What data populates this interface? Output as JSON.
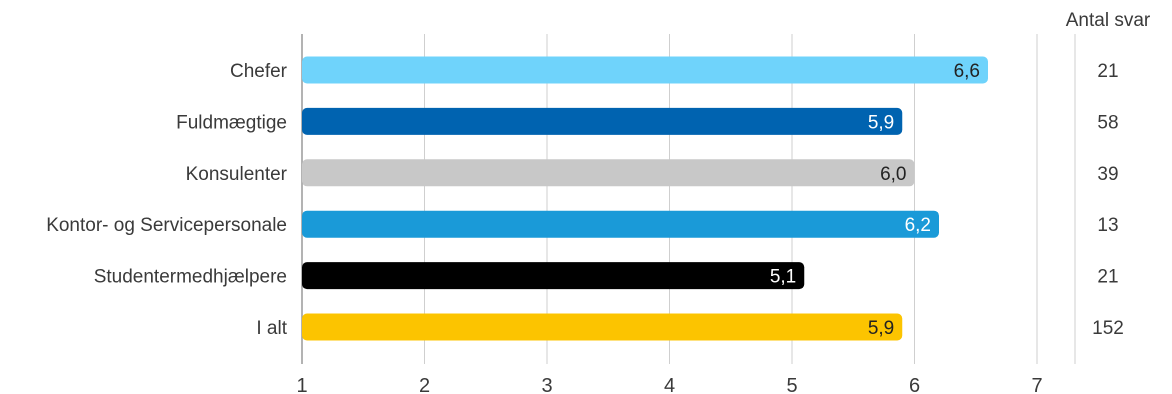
{
  "chart_data": {
    "type": "bar",
    "orientation": "horizontal",
    "categories": [
      "Chefer",
      "Fuldmægtige",
      "Konsulenter",
      "Kontor- og Servicepersonale",
      "Studentermedhjælpere",
      "I alt"
    ],
    "values": [
      6.6,
      5.9,
      6.0,
      6.2,
      5.1,
      5.9
    ],
    "value_labels": [
      "6,6",
      "5,9",
      "6,0",
      "6,2",
      "5,1",
      "5,9"
    ],
    "colors": [
      "#6fd3fb",
      "#0063b0",
      "#c8c8c8",
      "#1a9ad8",
      "#000000",
      "#fcc400"
    ],
    "value_label_colors": [
      "#222222",
      "#ffffff",
      "#222222",
      "#ffffff",
      "#ffffff",
      "#222222"
    ],
    "xlim": [
      1,
      7
    ],
    "xticks": [
      "1",
      "2",
      "3",
      "4",
      "5",
      "6",
      "7"
    ],
    "grid": true,
    "counts_header": "Antal svar",
    "counts": [
      "21",
      "58",
      "39",
      "13",
      "21",
      "152"
    ],
    "title": "",
    "xlabel": "",
    "ylabel": ""
  }
}
